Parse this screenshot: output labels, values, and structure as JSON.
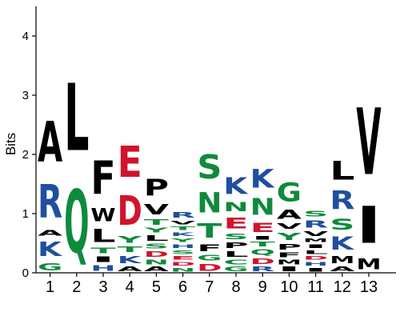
{
  "chart_data": {
    "type": "sequence-logo",
    "ylabel": "Bits",
    "ylim": [
      0,
      4.5
    ],
    "yticks": [
      0,
      1,
      2,
      3,
      4
    ],
    "positions": [
      "1",
      "2",
      "3",
      "4",
      "5",
      "6",
      "7",
      "8",
      "9",
      "10",
      "11",
      "12",
      "13"
    ],
    "colors": {
      "A": "#000000",
      "L": "#000000",
      "F": "#000000",
      "P": "#000000",
      "W": "#000000",
      "V": "#000000",
      "I": "#000000",
      "M": "#000000",
      "R": "#1f4fa0",
      "K": "#1f4fa0",
      "H": "#1f4fa0",
      "Q": "#0f8a3c",
      "S": "#0f8a3c",
      "N": "#0f8a3c",
      "T": "#0f8a3c",
      "G": "#0f8a3c",
      "Y": "#0f8a3c",
      "C": "#0f8a3c",
      "E": "#d0142c",
      "D": "#d0142c"
    },
    "columns": [
      [
        [
          "G",
          0.2
        ],
        [
          "K",
          0.4
        ],
        [
          "A",
          0.15
        ],
        [
          "R",
          0.9
        ],
        [
          "A",
          1.1
        ]
      ],
      [
        [
          "Q",
          1.7
        ],
        [
          "L",
          1.82
        ]
      ],
      [
        [
          "H",
          0.15
        ],
        [
          "I",
          0.15
        ],
        [
          "T",
          0.15
        ],
        [
          "L",
          0.35
        ],
        [
          "W",
          0.35
        ],
        [
          "F",
          0.9
        ]
      ],
      [
        [
          "A",
          0.12
        ],
        [
          "K",
          0.2
        ],
        [
          "T",
          0.15
        ],
        [
          "Y",
          0.18
        ],
        [
          "D",
          0.8
        ],
        [
          "E",
          0.85
        ]
      ],
      [
        [
          "A",
          0.12
        ],
        [
          "N",
          0.12
        ],
        [
          "D",
          0.15
        ],
        [
          "S",
          0.12
        ],
        [
          "L",
          0.15
        ],
        [
          "Y",
          0.12
        ],
        [
          "T",
          0.15
        ],
        [
          "V",
          0.28
        ],
        [
          "P",
          0.45
        ]
      ],
      [
        [
          "N",
          0.1
        ],
        [
          "D",
          0.1
        ],
        [
          "E",
          0.1
        ],
        [
          "S",
          0.1
        ],
        [
          "H",
          0.1
        ],
        [
          "Y",
          0.1
        ],
        [
          "K",
          0.1
        ],
        [
          "T",
          0.1
        ],
        [
          "V",
          0.1
        ],
        [
          "R",
          0.15
        ]
      ],
      [
        [
          "D",
          0.18
        ],
        [
          "G",
          0.15
        ],
        [
          "F",
          0.18
        ],
        [
          "T",
          0.4
        ],
        [
          "N",
          0.55
        ],
        [
          "S",
          0.65
        ]
      ],
      [
        [
          "G",
          0.12
        ],
        [
          "C",
          0.12
        ],
        [
          "L",
          0.15
        ],
        [
          "P",
          0.15
        ],
        [
          "S",
          0.15
        ],
        [
          "E",
          0.3
        ],
        [
          "N",
          0.25
        ],
        [
          "K",
          0.45
        ]
      ],
      [
        [
          "R",
          0.12
        ],
        [
          "D",
          0.15
        ],
        [
          "Q",
          0.15
        ],
        [
          "T",
          0.12
        ],
        [
          "I",
          0.1
        ],
        [
          "E",
          0.25
        ],
        [
          "N",
          0.45
        ],
        [
          "K",
          0.5
        ]
      ],
      [
        [
          "I",
          0.12
        ],
        [
          "M",
          0.12
        ],
        [
          "F",
          0.12
        ],
        [
          "P",
          0.15
        ],
        [
          "Y",
          0.2
        ],
        [
          "V",
          0.15
        ],
        [
          "A",
          0.25
        ],
        [
          "G",
          0.5
        ]
      ],
      [
        [
          "I",
          0.1
        ],
        [
          "H",
          0.1
        ],
        [
          "D",
          0.1
        ],
        [
          "L",
          0.1
        ],
        [
          "I",
          0.1
        ],
        [
          "M",
          0.1
        ],
        [
          "V",
          0.12
        ],
        [
          "R",
          0.2
        ],
        [
          "S",
          0.15
        ]
      ],
      [
        [
          "A",
          0.12
        ],
        [
          "M",
          0.2
        ],
        [
          "K",
          0.35
        ],
        [
          "S",
          0.3
        ],
        [
          "R",
          0.5
        ],
        [
          "L",
          0.5
        ]
      ],
      [
        [
          "M",
          0.3
        ],
        [
          "I",
          1.0
        ],
        [
          "V",
          1.8
        ]
      ]
    ]
  }
}
